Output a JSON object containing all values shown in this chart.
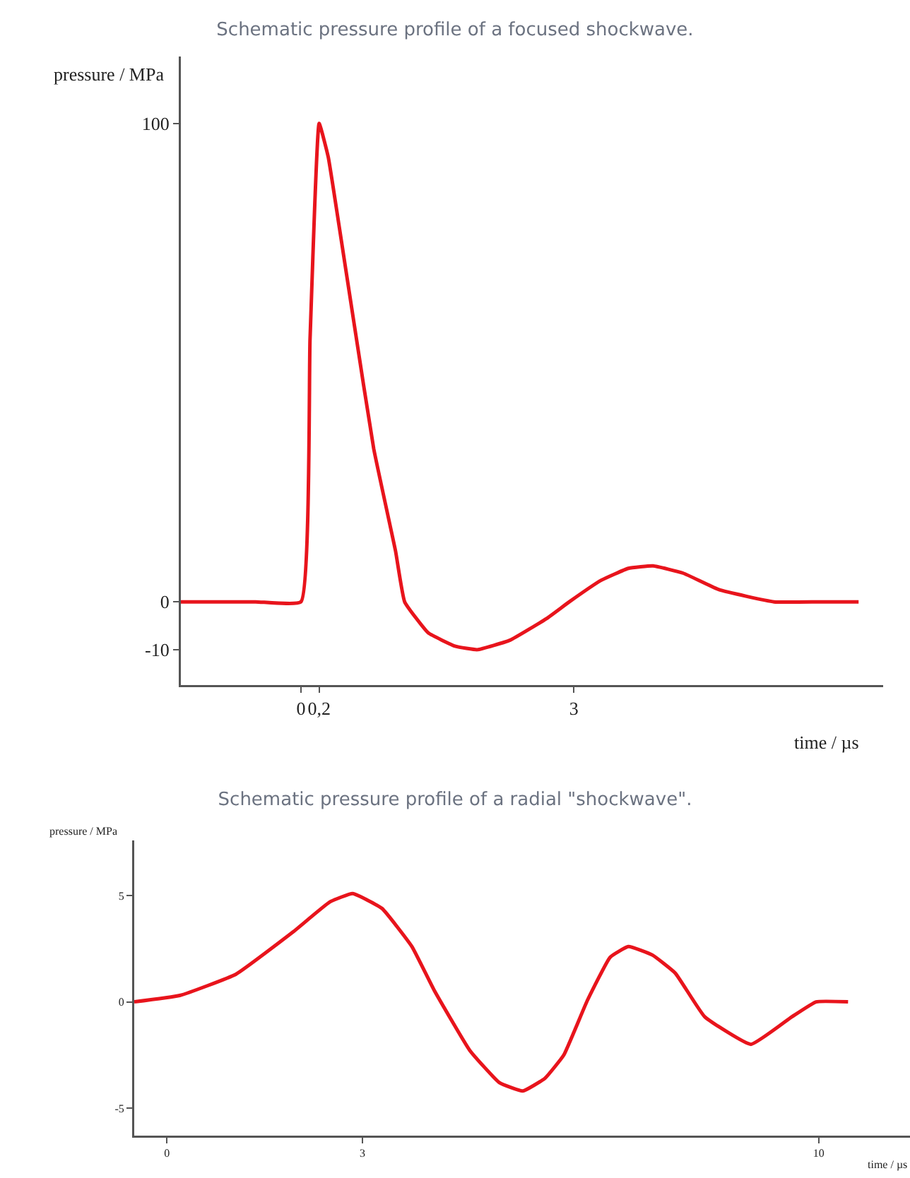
{
  "chart_data": [
    {
      "type": "line",
      "title": "Schematic pressure profile of a focused shockwave.",
      "xlabel": "time / µs",
      "ylabel": "pressure / MPa",
      "xlim": [
        -1.32,
        6.4
      ],
      "ylim": [
        -17.4,
        114
      ],
      "xticks": [
        0,
        {
          "value": 0.2,
          "label": "0,2"
        },
        3
      ],
      "yticks": [
        -10,
        0,
        100
      ],
      "series": [
        {
          "color": "#e8141c",
          "x": [
            -1.32,
            -0.5,
            0,
            0.1,
            0.2,
            0.3,
            0.42,
            0.58,
            0.8,
            1.04,
            1.14,
            1.4,
            1.7,
            1.94,
            2.3,
            2.7,
            2.95,
            3.3,
            3.6,
            3.87,
            4.2,
            4.6,
            5.2,
            5.7,
            6.13
          ],
          "values": [
            0,
            0,
            0,
            55,
            100,
            93,
            78.5,
            58.7,
            32,
            10.6,
            0,
            -6.5,
            -9.3,
            -10,
            -8,
            -3.5,
            0,
            4.5,
            7,
            7.5,
            6,
            2.5,
            0,
            0,
            0
          ]
        }
      ]
    },
    {
      "type": "line",
      "title": "Schematic pressure profile of a radial \"shockwave\".",
      "xlabel": "time / µs",
      "ylabel": "pressure / MPa",
      "xlim": [
        -0.5,
        11.4
      ],
      "ylim": [
        -6.3,
        7.6
      ],
      "xticks": [
        0,
        3,
        10
      ],
      "yticks": [
        -5,
        0,
        5
      ],
      "series": [
        {
          "color": "#e8141c",
          "x": [
            -0.5,
            0.2,
            1.06,
            1.94,
            2.5,
            2.85,
            3.3,
            3.76,
            4.1,
            4.65,
            5.1,
            5.46,
            5.8,
            6.09,
            6.45,
            6.8,
            7.08,
            7.45,
            7.8,
            8.25,
            8.96,
            9.59,
            9.96,
            10.45
          ],
          "values": [
            0,
            0.3,
            1.3,
            3.3,
            4.7,
            5.1,
            4.4,
            2.6,
            0.55,
            -2.3,
            -3.8,
            -4.2,
            -3.6,
            -2.5,
            0.06,
            2.1,
            2.6,
            2.2,
            1.35,
            -0.7,
            -2.0,
            -0.7,
            0,
            0
          ]
        }
      ]
    }
  ]
}
